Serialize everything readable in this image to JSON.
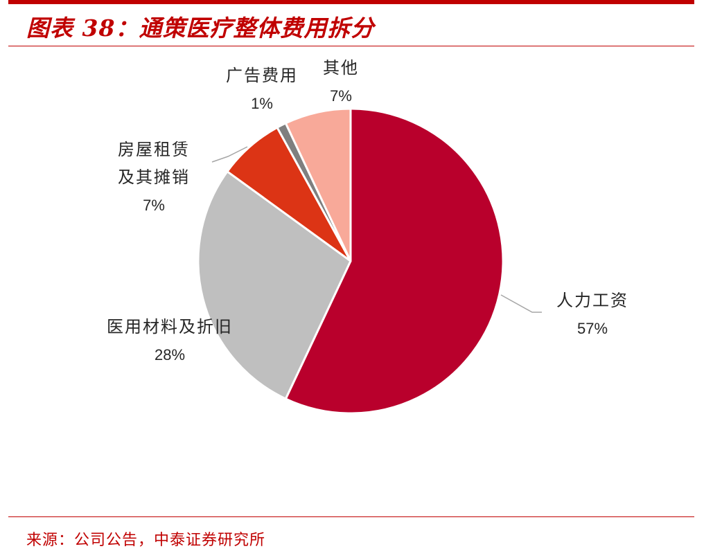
{
  "header": {
    "title": "图表 38：通策医疗整体费用拆分"
  },
  "footer": {
    "source": "来源：公司公告，中泰证券研究所"
  },
  "colors": {
    "accent": "#c00000"
  },
  "chart_data": {
    "type": "pie",
    "title": "",
    "start_angle_deg": 0,
    "direction": "clockwise",
    "legend": "none",
    "slices": [
      {
        "label": "人力工资",
        "label_lines": [
          "人力工资"
        ],
        "value": 57,
        "value_label": "57%",
        "color": "#b9002c"
      },
      {
        "label": "医用材料及折旧",
        "label_lines": [
          "医用材料及折旧"
        ],
        "value": 28,
        "value_label": "28%",
        "color": "#bfbfbf"
      },
      {
        "label": "房屋租赁及其摊销",
        "label_lines": [
          "房屋租赁",
          "及其摊销"
        ],
        "value": 7,
        "value_label": "7%",
        "color": "#dc3415"
      },
      {
        "label": "广告费用",
        "label_lines": [
          "广告费用"
        ],
        "value": 1,
        "value_label": "1%",
        "color": "#7f7f7f"
      },
      {
        "label": "其他",
        "label_lines": [
          "其他"
        ],
        "value": 7,
        "value_label": "7%",
        "color": "#f8a999"
      }
    ]
  }
}
